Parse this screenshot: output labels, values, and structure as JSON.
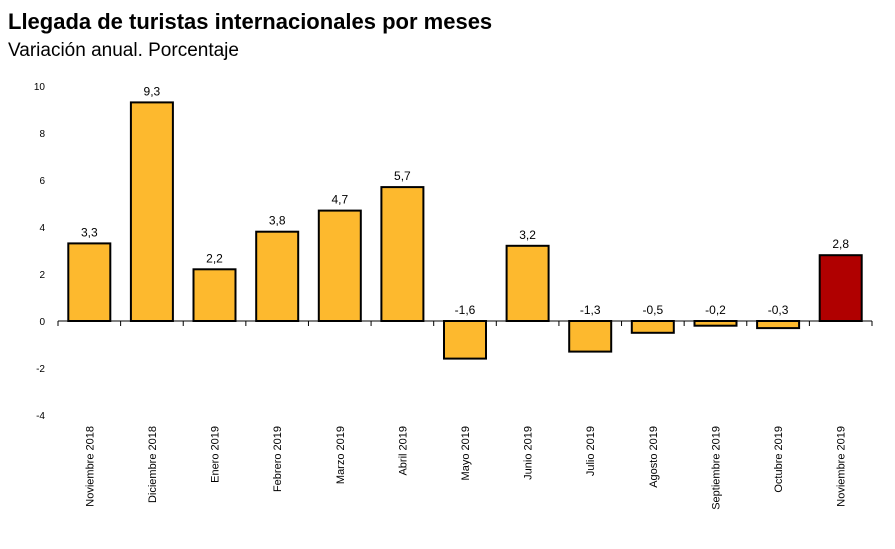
{
  "title": "Llegada de turistas internacionales por meses",
  "subtitle": "Variación anual. Porcentaje",
  "colors": {
    "bar": "#FDB92E",
    "highlight": "#B00000",
    "stroke": "#000000"
  },
  "chart_data": {
    "type": "bar",
    "categories": [
      "Noviembre 2018",
      "Diciembre 2018",
      "Enero 2019",
      "Febrero 2019",
      "Marzo 2019",
      "Abril 2019",
      "Mayo 2019",
      "Junio 2019",
      "Julio 2019",
      "Agosto 2019",
      "Septiembre 2019",
      "Octubre 2019",
      "Noviembre 2019"
    ],
    "values": [
      3.3,
      9.3,
      2.2,
      3.8,
      4.7,
      5.7,
      -1.6,
      3.2,
      -1.3,
      -0.5,
      -0.2,
      -0.3,
      2.8
    ],
    "data_labels": [
      "3,3",
      "9,3",
      "2,2",
      "3,8",
      "4,7",
      "5,7",
      "-1,6",
      "3,2",
      "-1,3",
      "-0,5",
      "-0,2",
      "-0,3",
      "2,8"
    ],
    "highlight_index": 12,
    "ylim": [
      -4,
      10
    ],
    "yticks": [
      -4,
      -2,
      0,
      2,
      4,
      6,
      8,
      10
    ],
    "ytick_labels": [
      "-4",
      "-2",
      "0",
      "2",
      "4",
      "6",
      "8",
      "10"
    ],
    "grid": false,
    "legend": "none"
  }
}
